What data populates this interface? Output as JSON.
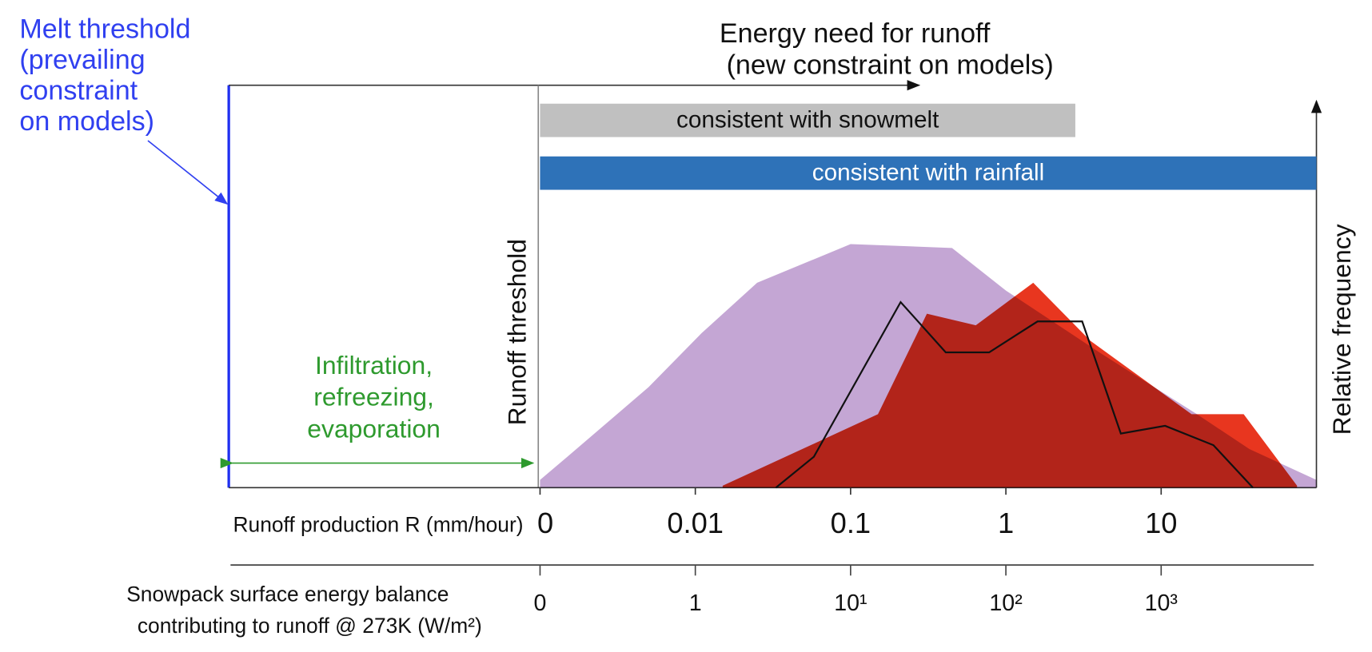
{
  "chart_data": {
    "type": "area",
    "title_lines": [
      "Energy need for runoff",
      "(new constraint on models)"
    ],
    "melt_threshold_lines": [
      "Melt threshold",
      "(prevailing",
      "constraint",
      "on models)"
    ],
    "runoff_threshold_label": "Runoff threshold",
    "infiltration_lines": [
      "Infiltration,",
      "refreezing,",
      "evaporation"
    ],
    "x_label": "Runoff production R (mm/hour)",
    "x2_label_lines": [
      "Snowpack surface energy balance",
      "contributing to runoff @ 273K (W/m²)"
    ],
    "y_label": "Relative frequency",
    "xscale": "log",
    "xlim": [
      0.001,
      100
    ],
    "xticks": [
      {
        "value": 0.001,
        "label": "0"
      },
      0.01,
      0.1,
      1,
      10
    ],
    "x2lim": [
      0.1,
      10000
    ],
    "x2ticks": [
      {
        "value": 0.1,
        "label": "0"
      },
      1,
      {
        "value": 10,
        "label": "10¹"
      },
      {
        "value": 100,
        "label": "10²"
      },
      {
        "value": 1000,
        "label": "10³"
      }
    ],
    "ylim": [
      0,
      1
    ],
    "ranges": [
      {
        "label": "consistent with snowmelt",
        "start": 0.001,
        "end": 2.8,
        "color": "#c0c0c0"
      },
      {
        "label": "consistent with rainfall",
        "start": 0.001,
        "end": 100,
        "color": "#2e72b8"
      }
    ],
    "series": [
      {
        "kind": "area",
        "color": "#c4a6d4",
        "x": [
          0.001,
          0.0015,
          0.005,
          0.011,
          0.025,
          0.1,
          0.45,
          1,
          4,
          17,
          37,
          100
        ],
        "values": [
          0.02,
          0.08,
          0.26,
          0.4,
          0.53,
          0.63,
          0.62,
          0.51,
          0.35,
          0.19,
          0.1,
          0.02
        ]
      },
      {
        "kind": "area",
        "color": "#e8361f",
        "x": [
          0.015,
          0.15,
          0.31,
          0.64,
          1.5,
          3.5,
          15.7,
          34,
          75
        ],
        "values": [
          0.005,
          0.19,
          0.45,
          0.42,
          0.53,
          0.38,
          0.19,
          0.19,
          0.005
        ]
      },
      {
        "kind": "line",
        "color": "#111111",
        "x": [
          0.033,
          0.058,
          0.21,
          0.41,
          0.78,
          1.6,
          3.1,
          5.5,
          10.6,
          21.7,
          39
        ],
        "values": [
          0,
          0.08,
          0.48,
          0.35,
          0.35,
          0.43,
          0.43,
          0.14,
          0.16,
          0.11,
          0
        ]
      }
    ]
  }
}
